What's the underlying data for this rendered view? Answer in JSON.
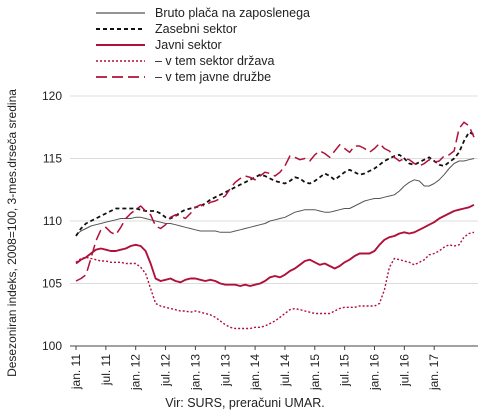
{
  "chart_data": {
    "type": "line",
    "title": "",
    "ylabel": "Desezoniran indeks, 2008=100, 3-mes.drseča sredina",
    "xlabel": "",
    "ylim": [
      100,
      120
    ],
    "yticks": [
      100,
      105,
      110,
      115,
      120
    ],
    "x_range": [
      "jan. 11",
      "apr. 17"
    ],
    "xticks": [
      "jan. 11",
      "jul. 11",
      "jan. 12",
      "jul. 12",
      "jan. 13",
      "jul. 13",
      "jan. 14",
      "jul. 14",
      "jan. 15",
      "jul. 15",
      "jan. 16",
      "jul. 16",
      "jan. 17"
    ],
    "grid": "horizontal",
    "legend_position": "top",
    "series": [
      {
        "name": "Bruto plača na zaposlenega",
        "color": "#555555",
        "dash": "solid",
        "values": [
          108.9,
          109.2,
          109.4,
          109.6,
          109.7,
          109.8,
          109.9,
          110.0,
          110.1,
          110.2,
          110.2,
          110.2,
          110.3,
          110.3,
          110.2,
          110.1,
          110.0,
          109.9,
          109.8,
          109.8,
          109.7,
          109.6,
          109.5,
          109.4,
          109.3,
          109.2,
          109.2,
          109.2,
          109.2,
          109.1,
          109.1,
          109.1,
          109.2,
          109.3,
          109.4,
          109.5,
          109.6,
          109.7,
          109.8,
          110.0,
          110.1,
          110.2,
          110.3,
          110.5,
          110.7,
          110.8,
          110.9,
          110.9,
          110.9,
          110.8,
          110.7,
          110.7,
          110.8,
          110.9,
          111.0,
          111.0,
          111.2,
          111.4,
          111.6,
          111.7,
          111.8,
          111.8,
          111.9,
          112.0,
          112.1,
          112.4,
          112.8,
          113.1,
          113.3,
          113.2,
          112.8,
          112.8,
          113.0,
          113.3,
          113.7,
          114.2,
          114.6,
          114.8,
          114.8,
          114.9,
          115.0
        ]
      },
      {
        "name": "Zasebni sektor",
        "color": "#111111",
        "dash": "dashed",
        "values": [
          108.8,
          109.4,
          109.8,
          110.0,
          110.2,
          110.4,
          110.6,
          110.8,
          111.0,
          111.0,
          111.0,
          111.0,
          111.0,
          110.9,
          110.8,
          110.8,
          110.8,
          110.6,
          110.3,
          110.2,
          110.4,
          110.7,
          110.9,
          111.0,
          111.1,
          111.2,
          111.4,
          111.7,
          111.9,
          112.1,
          112.3,
          112.5,
          112.7,
          112.9,
          113.1,
          113.3,
          113.5,
          113.7,
          113.6,
          113.4,
          113.2,
          113.1,
          113.0,
          113.2,
          113.5,
          113.4,
          113.1,
          113.0,
          113.2,
          113.5,
          113.8,
          113.6,
          113.3,
          113.6,
          113.9,
          114.1,
          113.9,
          113.7,
          113.8,
          114.0,
          114.2,
          114.5,
          114.8,
          115.0,
          115.2,
          115.3,
          115.0,
          114.6,
          114.5,
          114.7,
          114.9,
          115.1,
          114.8,
          114.5,
          114.4,
          114.7,
          115.0,
          115.5,
          116.4,
          117.1,
          116.9
        ]
      },
      {
        "name": "Javni sektor",
        "color": "#b0103a",
        "dash": "solid",
        "values": [
          106.6,
          106.9,
          107.1,
          107.4,
          107.7,
          107.8,
          107.7,
          107.6,
          107.6,
          107.7,
          107.8,
          108.0,
          108.1,
          108.0,
          107.6,
          106.6,
          105.4,
          105.2,
          105.3,
          105.4,
          105.2,
          105.1,
          105.3,
          105.4,
          105.4,
          105.3,
          105.2,
          105.3,
          105.2,
          105.0,
          104.9,
          104.9,
          104.9,
          104.8,
          104.9,
          104.8,
          104.9,
          105.0,
          105.2,
          105.5,
          105.6,
          105.5,
          105.7,
          106.0,
          106.2,
          106.5,
          106.8,
          106.9,
          106.7,
          106.5,
          106.6,
          106.4,
          106.2,
          106.4,
          106.7,
          106.9,
          107.2,
          107.4,
          107.4,
          107.4,
          107.6,
          108.1,
          108.5,
          108.7,
          108.8,
          109.0,
          109.1,
          109.0,
          109.1,
          109.3,
          109.5,
          109.7,
          109.9,
          110.2,
          110.4,
          110.6,
          110.8,
          110.9,
          111.0,
          111.1,
          111.3
        ]
      },
      {
        "name": "– v tem sektor država",
        "color": "#b0103a",
        "dash": "dotted",
        "values": [
          106.7,
          107.0,
          107.1,
          107.0,
          106.9,
          106.8,
          106.8,
          106.7,
          106.7,
          106.7,
          106.6,
          106.6,
          106.6,
          106.3,
          105.8,
          104.6,
          103.4,
          103.2,
          103.1,
          103.0,
          102.9,
          102.8,
          102.8,
          102.7,
          102.8,
          102.7,
          102.6,
          102.5,
          102.3,
          102.0,
          101.7,
          101.5,
          101.4,
          101.4,
          101.4,
          101.4,
          101.5,
          101.5,
          101.6,
          101.8,
          102.0,
          102.3,
          102.6,
          102.9,
          103.0,
          102.9,
          102.8,
          102.7,
          102.6,
          102.6,
          102.6,
          102.6,
          102.8,
          103.0,
          103.1,
          103.1,
          103.1,
          103.2,
          103.2,
          103.2,
          103.2,
          103.4,
          104.5,
          106.3,
          107.0,
          106.9,
          106.8,
          106.7,
          106.5,
          106.7,
          106.9,
          107.3,
          107.4,
          107.6,
          107.9,
          108.1,
          108.0,
          108.1,
          108.7,
          109.0,
          109.1
        ]
      },
      {
        "name": "– v tem javne družbe",
        "color": "#b0103a",
        "dash": "longdash",
        "values": [
          105.2,
          105.4,
          105.7,
          107.0,
          108.4,
          109.3,
          109.5,
          109.1,
          108.9,
          109.5,
          110.2,
          110.6,
          110.9,
          111.2,
          110.8,
          110.5,
          109.6,
          109.4,
          109.7,
          110.3,
          110.5,
          110.4,
          110.2,
          110.6,
          111.1,
          111.3,
          111.2,
          111.5,
          111.6,
          111.8,
          112.0,
          112.6,
          113.1,
          113.4,
          113.6,
          113.5,
          113.3,
          113.6,
          113.9,
          113.8,
          113.6,
          113.9,
          114.4,
          115.2,
          115.1,
          114.9,
          115.0,
          114.8,
          115.3,
          115.6,
          115.4,
          115.1,
          115.6,
          116.1,
          115.8,
          115.5,
          116.0,
          116.0,
          115.8,
          115.5,
          115.8,
          116.2,
          115.8,
          115.6,
          115.1,
          114.8,
          115.0,
          114.9,
          114.6,
          114.4,
          114.6,
          114.9,
          114.7,
          114.8,
          115.2,
          115.3,
          115.6,
          117.4,
          117.9,
          117.6,
          116.7
        ]
      }
    ]
  },
  "source": "Vir: SURS, preračuni UMAR."
}
